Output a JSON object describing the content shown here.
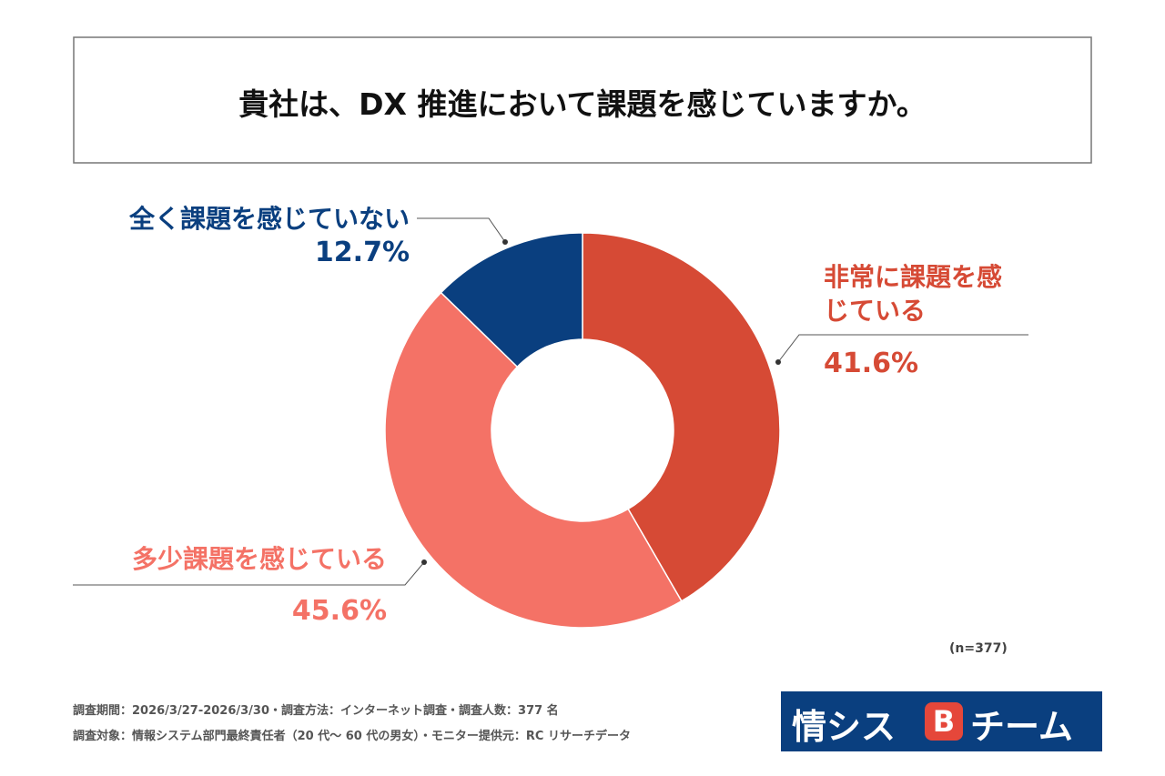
{
  "chart_data": {
    "type": "donut",
    "title": "貴社は、DX 推進において課題を感じていますか。",
    "categories": [
      "非常に課題を感じている",
      "多少課題を感じている",
      "全く課題を感じていない"
    ],
    "values": [
      41.6,
      45.6,
      12.7
    ],
    "value_labels": [
      "41.6%",
      "45.6%",
      "12.7%"
    ],
    "colors": [
      "#d64a35",
      "#f47266",
      "#0a3f7f"
    ],
    "note": "(n=377)"
  },
  "footer": {
    "lines": [
      "調査期間：2026/3/27-2026/3/30・調査方法：インターネット調査・調査人数：377 名",
      "調査対象：情報システム部門最終責任者（20 代～ 60 代の男女）・モニター提供元：RC リサーチデータ"
    ]
  },
  "logo": {
    "left": "情シス",
    "mark": "B",
    "right": "チーム"
  }
}
